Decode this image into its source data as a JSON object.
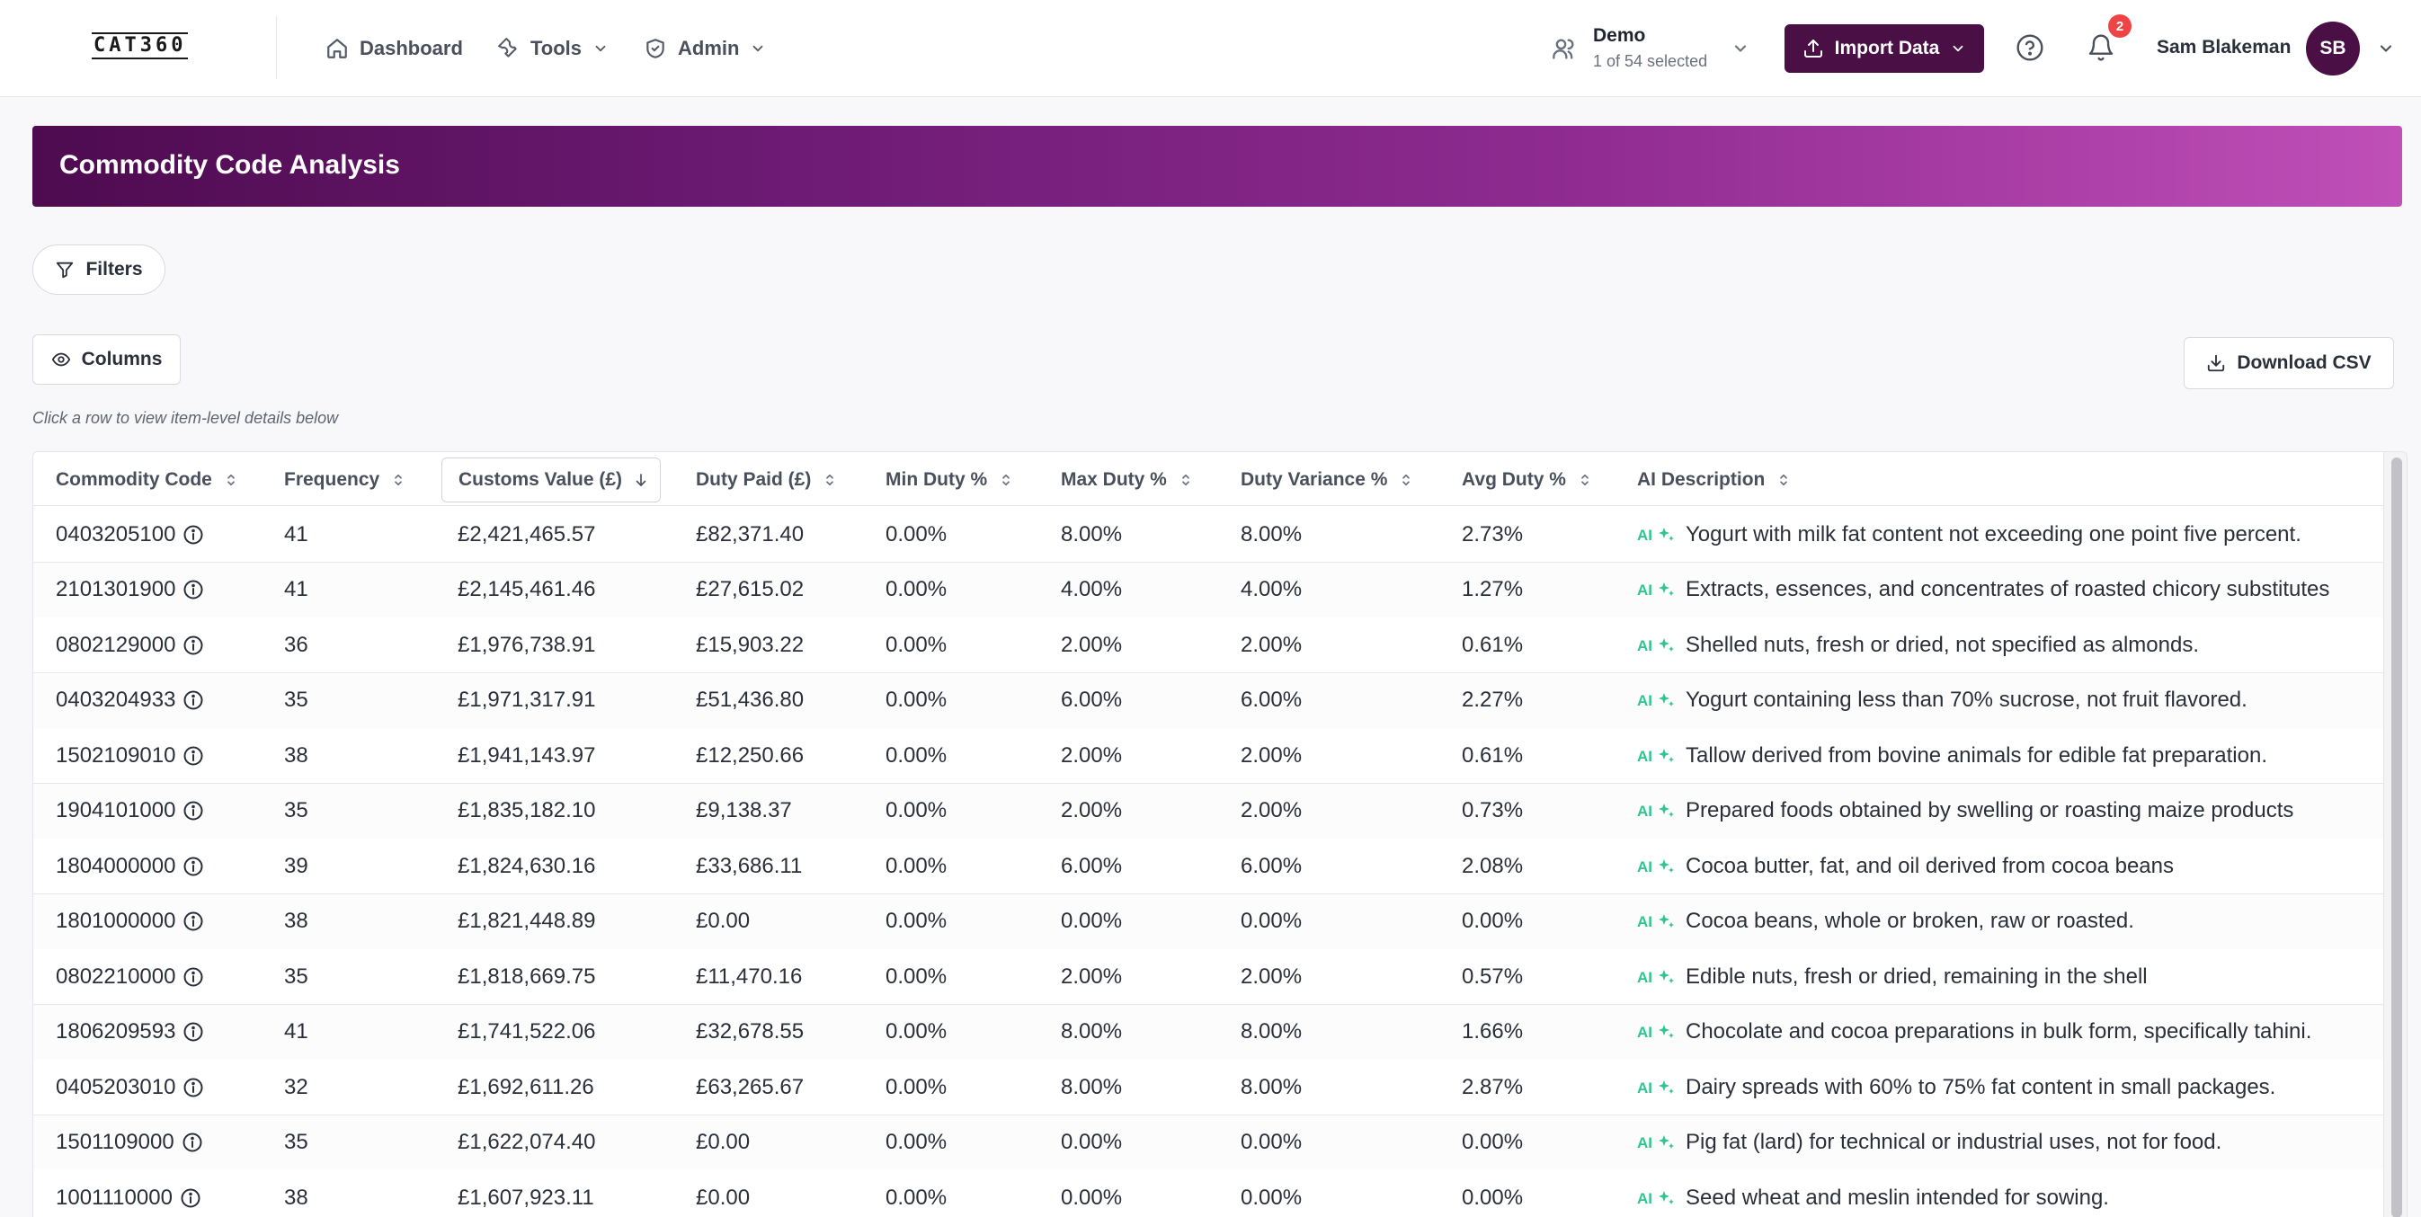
{
  "app": {
    "logo_text": "CAT360"
  },
  "nav": {
    "items": [
      {
        "label": "Dashboard",
        "icon": "home-icon"
      },
      {
        "label": "Tools",
        "icon": "wrench-icon"
      },
      {
        "label": "Admin",
        "icon": "shield-icon"
      }
    ]
  },
  "org_selector": {
    "name": "Demo",
    "subtitle": "1 of 54 selected"
  },
  "import_button": {
    "label": "Import Data"
  },
  "notifications": {
    "count": "2"
  },
  "user": {
    "name": "Sam Blakeman",
    "initials": "SB"
  },
  "page": {
    "title": "Commodity Code Analysis",
    "filters_label": "Filters",
    "columns_label": "Columns",
    "download_label": "Download CSV",
    "hint": "Click a row to view item-level details below"
  },
  "table": {
    "columns": [
      "Commodity Code",
      "Frequency",
      "Customs Value (£)",
      "Duty Paid (£)",
      "Min Duty %",
      "Max Duty %",
      "Duty Variance %",
      "Avg Duty %",
      "AI Description"
    ],
    "sorted_column": "Customs Value (£)",
    "sort_direction": "descending",
    "ai_badge": "AI",
    "rows": [
      [
        "0403205100",
        "41",
        "£2,421,465.57",
        "£82,371.40",
        "0.00%",
        "8.00%",
        "8.00%",
        "2.73%",
        "Yogurt with milk fat content not exceeding one point five percent."
      ],
      [
        "2101301900",
        "41",
        "£2,145,461.46",
        "£27,615.02",
        "0.00%",
        "4.00%",
        "4.00%",
        "1.27%",
        "Extracts, essences, and concentrates of roasted chicory substitutes"
      ],
      [
        "0802129000",
        "36",
        "£1,976,738.91",
        "£15,903.22",
        "0.00%",
        "2.00%",
        "2.00%",
        "0.61%",
        "Shelled nuts, fresh or dried, not specified as almonds."
      ],
      [
        "0403204933",
        "35",
        "£1,971,317.91",
        "£51,436.80",
        "0.00%",
        "6.00%",
        "6.00%",
        "2.27%",
        "Yogurt containing less than 70% sucrose, not fruit flavored."
      ],
      [
        "1502109010",
        "38",
        "£1,941,143.97",
        "£12,250.66",
        "0.00%",
        "2.00%",
        "2.00%",
        "0.61%",
        "Tallow derived from bovine animals for edible fat preparation."
      ],
      [
        "1904101000",
        "35",
        "£1,835,182.10",
        "£9,138.37",
        "0.00%",
        "2.00%",
        "2.00%",
        "0.73%",
        "Prepared foods obtained by swelling or roasting maize products"
      ],
      [
        "1804000000",
        "39",
        "£1,824,630.16",
        "£33,686.11",
        "0.00%",
        "6.00%",
        "6.00%",
        "2.08%",
        "Cocoa butter, fat, and oil derived from cocoa beans"
      ],
      [
        "1801000000",
        "38",
        "£1,821,448.89",
        "£0.00",
        "0.00%",
        "0.00%",
        "0.00%",
        "0.00%",
        "Cocoa beans, whole or broken, raw or roasted."
      ],
      [
        "0802210000",
        "35",
        "£1,818,669.75",
        "£11,470.16",
        "0.00%",
        "2.00%",
        "2.00%",
        "0.57%",
        "Edible nuts, fresh or dried, remaining in the shell"
      ],
      [
        "1806209593",
        "41",
        "£1,741,522.06",
        "£32,678.55",
        "0.00%",
        "8.00%",
        "8.00%",
        "1.66%",
        "Chocolate and cocoa preparations in bulk form, specifically tahini."
      ],
      [
        "0405203010",
        "32",
        "£1,692,611.26",
        "£63,265.67",
        "0.00%",
        "8.00%",
        "8.00%",
        "2.87%",
        "Dairy spreads with 60% to 75% fat content in small packages."
      ],
      [
        "1501109000",
        "35",
        "£1,622,074.40",
        "£0.00",
        "0.00%",
        "0.00%",
        "0.00%",
        "0.00%",
        "Pig fat (lard) for technical or industrial uses, not for food."
      ],
      [
        "1001110000",
        "38",
        "£1,607,923.11",
        "£0.00",
        "0.00%",
        "0.00%",
        "0.00%",
        "0.00%",
        "Seed wheat and meslin intended for sowing."
      ]
    ]
  },
  "colors": {
    "brand": "#4a0f45",
    "banner_start": "#4e0b4f",
    "banner_end": "#c04fb8",
    "ai_accent": "#2fc58f",
    "badge": "#ef4444"
  }
}
